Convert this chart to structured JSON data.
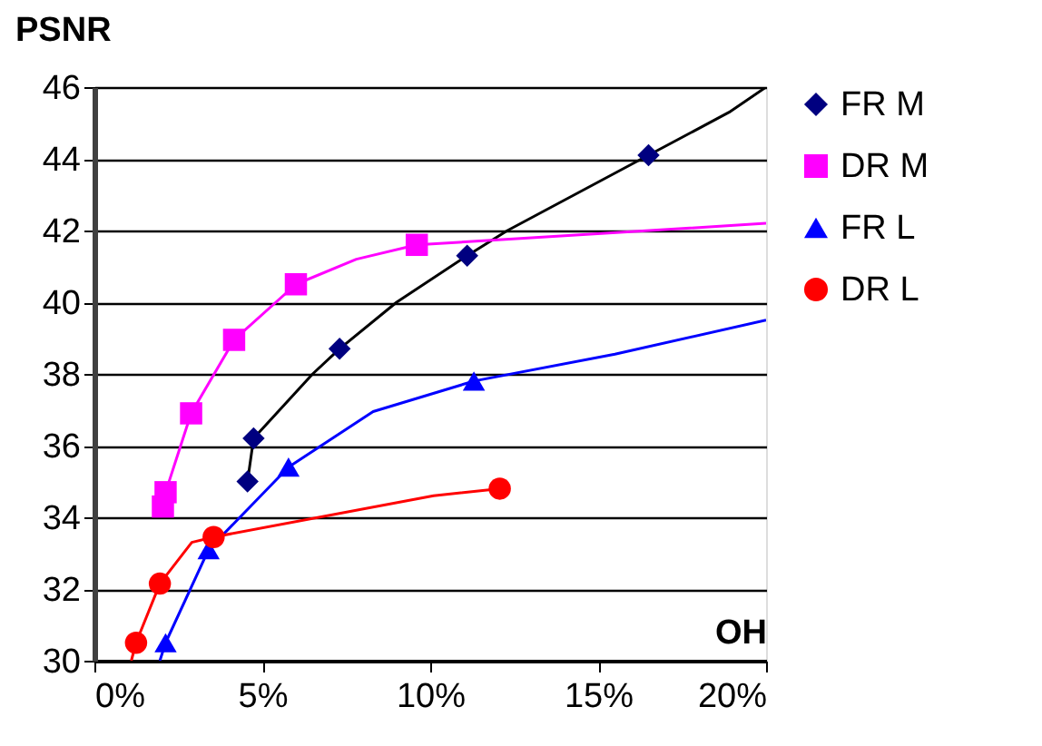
{
  "chart_data": {
    "type": "scatter",
    "xlabel": "OH",
    "ylabel": "PSNR",
    "xlim": [
      0,
      20
    ],
    "xticks": [
      {
        "value": 0,
        "label": "0%"
      },
      {
        "value": 5,
        "label": "5%"
      },
      {
        "value": 10,
        "label": "10%"
      },
      {
        "value": 15,
        "label": "15%"
      },
      {
        "value": 20,
        "label": "20%"
      }
    ],
    "ylim": [
      30,
      46
    ],
    "yticks": [
      30,
      32,
      34,
      36,
      38,
      40,
      42,
      44,
      46
    ],
    "grid": "y",
    "legend": "right",
    "series": [
      {
        "type": "line",
        "color": "#000000",
        "marker": "none",
        "x": [
          4.56,
          4.74,
          6.5,
          7.3,
          9.0,
          11.1,
          12.3,
          16.5,
          18.9,
          20
        ],
        "values": [
          35.0,
          36.2,
          38.0,
          38.7,
          40.0,
          41.3,
          42.0,
          44.1,
          45.3,
          46.0
        ]
      },
      {
        "type": "line",
        "color": "#ff00ff",
        "marker": "none",
        "x": [
          2.04,
          2.12,
          2.88,
          4.16,
          6.0,
          7.8,
          9.6,
          20
        ],
        "values": [
          34.3,
          34.7,
          36.9,
          38.95,
          40.5,
          41.2,
          41.6,
          42.2
        ]
      },
      {
        "type": "line",
        "color": "#0000ff",
        "marker": "none",
        "x": [
          1.95,
          2.12,
          3.4,
          5.78,
          8.3,
          11.3,
          15.5,
          20
        ],
        "values": [
          30.0,
          30.5,
          33.1,
          35.4,
          36.95,
          37.8,
          38.55,
          39.5
        ]
      },
      {
        "type": "line",
        "color": "#ff0000",
        "marker": "none",
        "x": [
          1.1,
          1.24,
          1.95,
          2.9,
          3.55,
          10.1,
          12.07
        ],
        "values": [
          30.0,
          30.5,
          32.15,
          33.3,
          33.45,
          34.6,
          34.8
        ]
      },
      {
        "name": "FR M",
        "color": "#000080",
        "marker": "diamond",
        "x": [
          4.56,
          4.74,
          7.3,
          11.1,
          16.5
        ],
        "values": [
          35.0,
          36.2,
          38.7,
          41.3,
          44.1
        ]
      },
      {
        "name": "DR M",
        "color": "#ff00ff",
        "marker": "square",
        "x": [
          2.04,
          2.12,
          2.88,
          4.16,
          6.0,
          9.6
        ],
        "values": [
          34.3,
          34.7,
          36.9,
          38.95,
          40.5,
          41.6
        ]
      },
      {
        "name": "FR L",
        "color": "#0000ff",
        "marker": "triangle",
        "x": [
          2.12,
          3.4,
          5.78,
          11.3
        ],
        "values": [
          30.5,
          33.1,
          35.4,
          37.8
        ]
      },
      {
        "name": "DR L",
        "color": "#ff0000",
        "marker": "circle",
        "x": [
          1.24,
          1.95,
          3.55,
          12.07
        ],
        "values": [
          30.5,
          32.15,
          33.45,
          34.8
        ]
      }
    ]
  }
}
